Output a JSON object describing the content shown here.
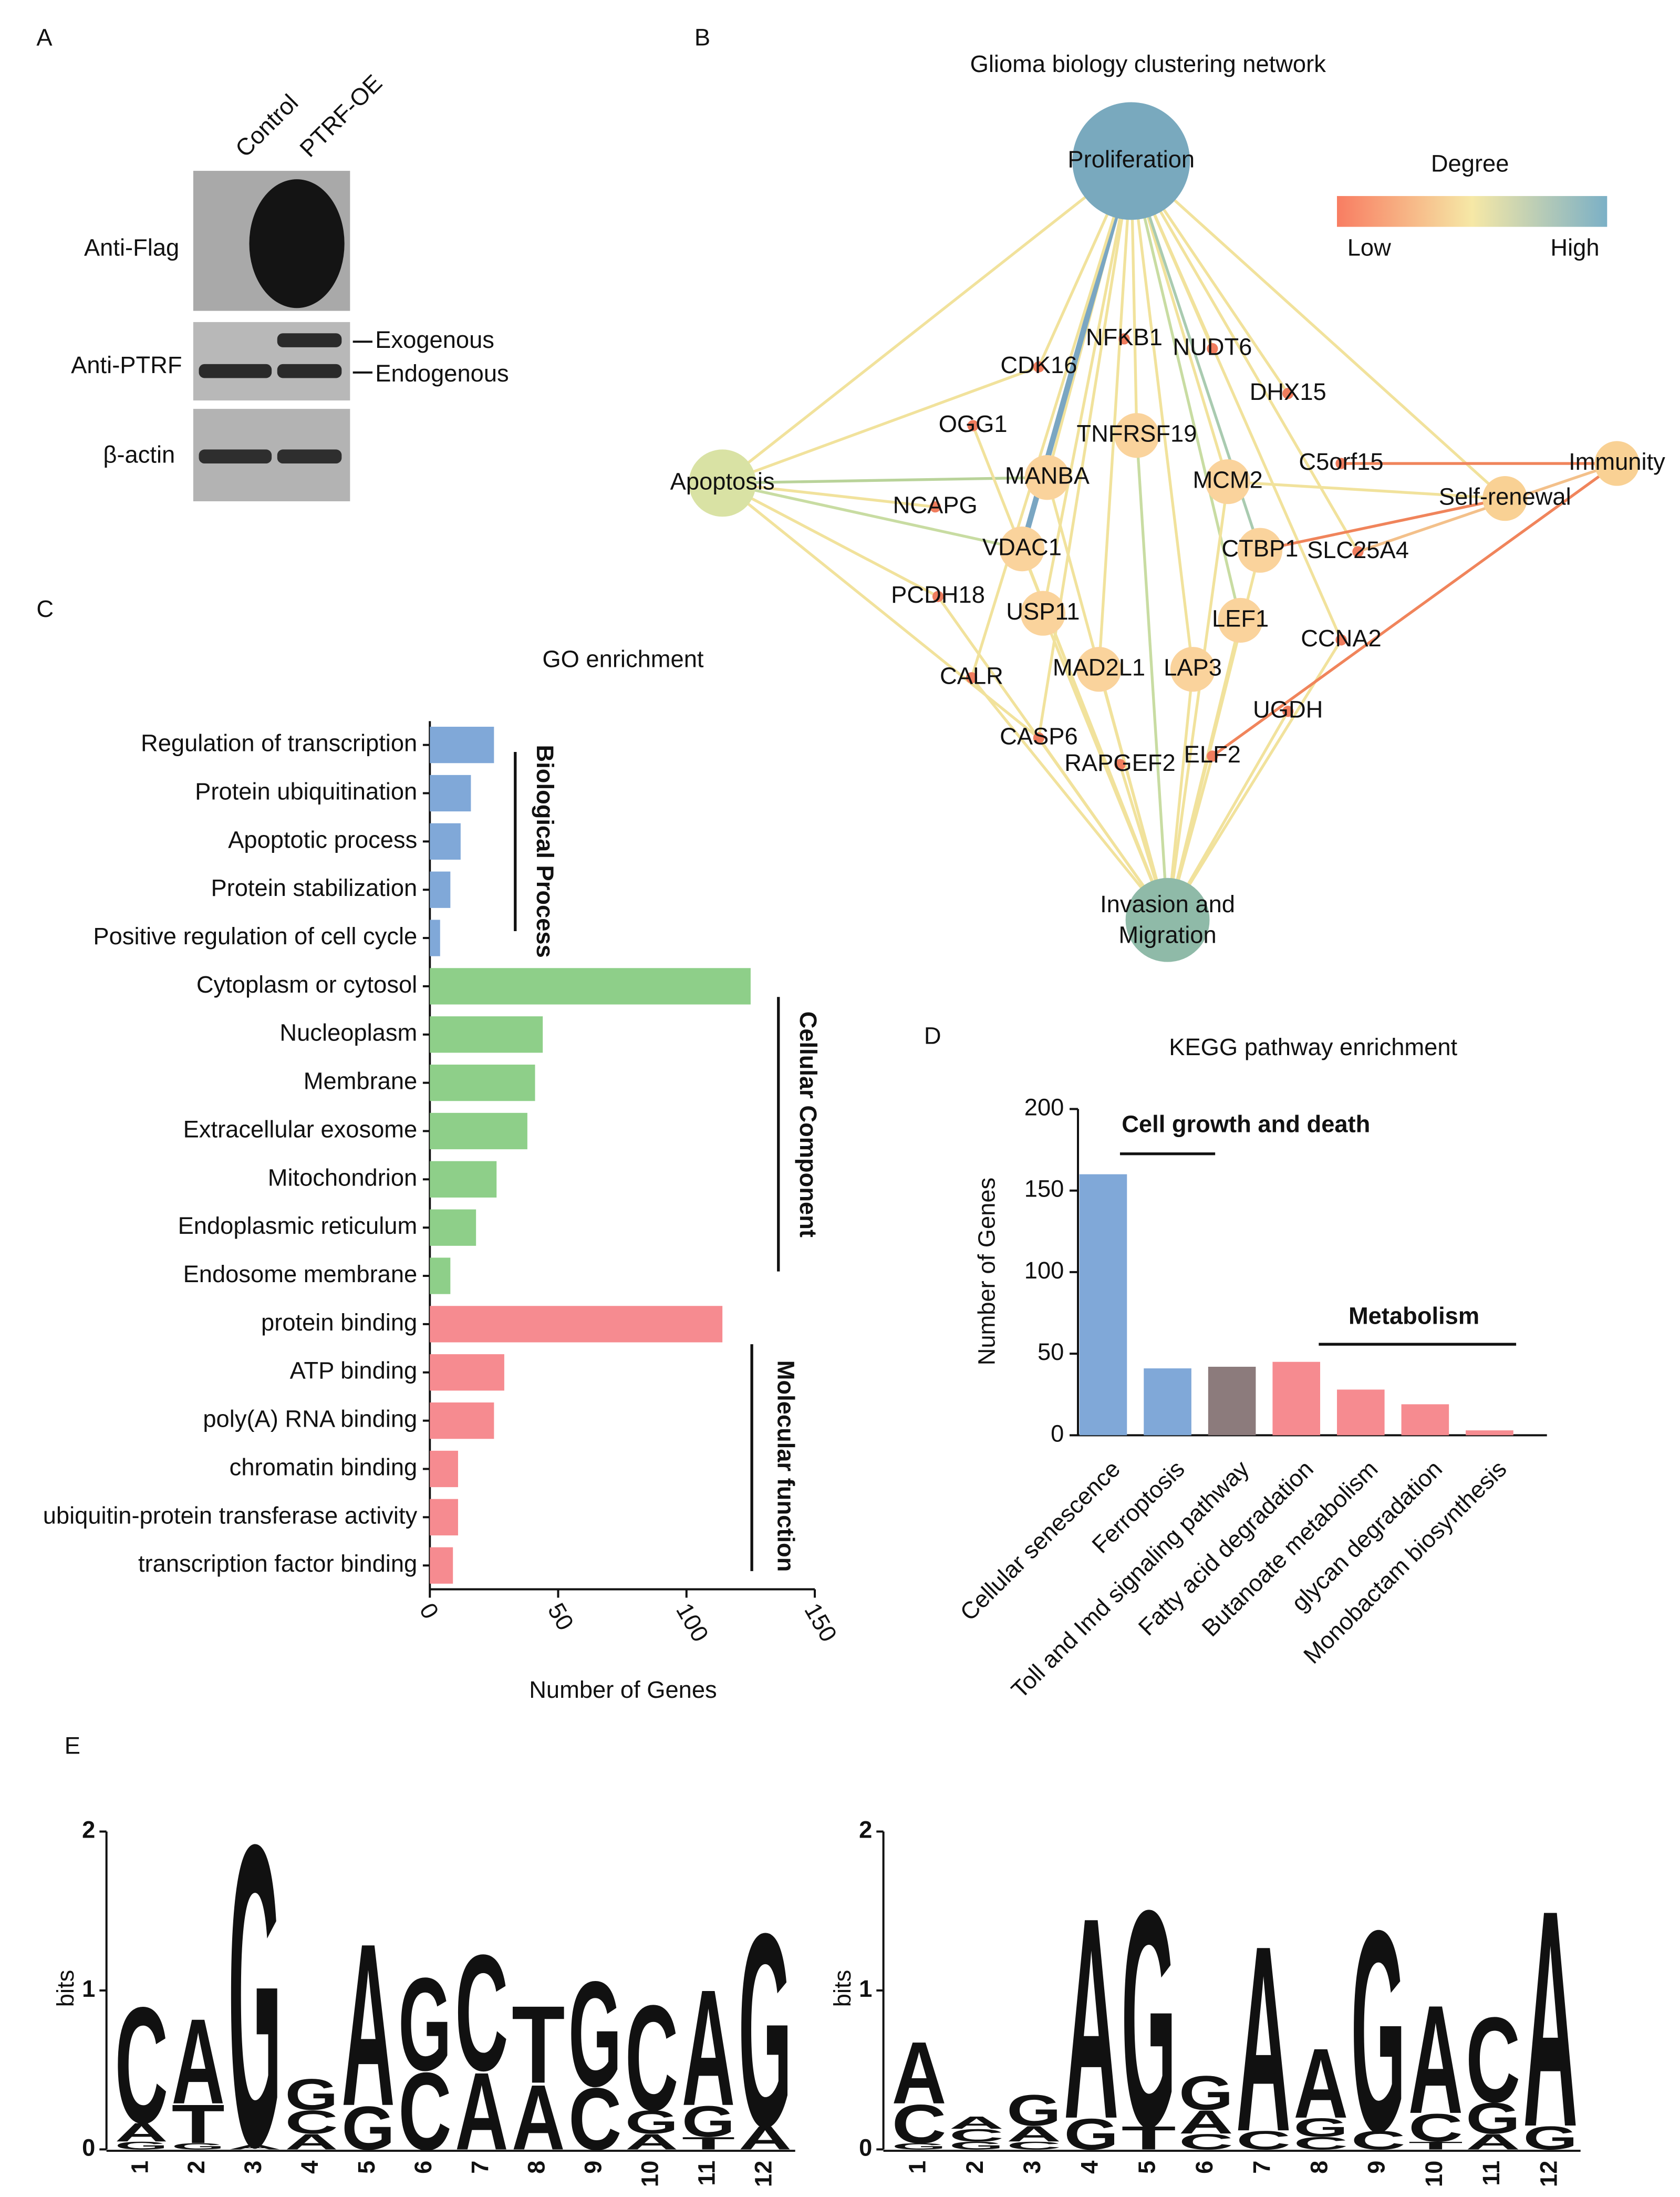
{
  "panels": [
    "A",
    "B",
    "C",
    "D",
    "E"
  ],
  "blot": {
    "columns": [
      "Control",
      "PTRF-OE"
    ],
    "rows": [
      "Anti-Flag",
      "Anti-PTRF",
      "β-actin"
    ],
    "annotations": [
      "Exogenous",
      "Endogenous"
    ]
  },
  "network": {
    "title": "Glioma biology clustering network",
    "legend": {
      "title": "Degree",
      "low": "Low",
      "high": "High",
      "colors": [
        "#f87d62",
        "#f6e8a6",
        "#7bb0c6"
      ]
    },
    "nodes": [
      {
        "label": "Proliferation",
        "color": "#79a9be"
      },
      {
        "label": "Apoptosis",
        "color": "#d9e2a4"
      },
      {
        "label": "Immunity",
        "color": "#f9d194"
      },
      {
        "label": "Self-renewal",
        "color": "#f9d194"
      },
      {
        "label": "Invasion and Migration",
        "color": "#8fbaa8"
      },
      {
        "label": "MANBA",
        "color": "#fad39c"
      },
      {
        "label": "TNFRSF19",
        "color": "#fad39c"
      },
      {
        "label": "MCM2",
        "color": "#fad39c"
      },
      {
        "label": "VDAC1",
        "color": "#fad39c"
      },
      {
        "label": "CTBP1",
        "color": "#fad39c"
      },
      {
        "label": "USP11",
        "color": "#fad39c"
      },
      {
        "label": "LEF1",
        "color": "#fad39c"
      },
      {
        "label": "MAD2L1",
        "color": "#fad39c"
      },
      {
        "label": "LAP3",
        "color": "#fad39c"
      },
      {
        "label": "CDK16",
        "color": "#f07d5e"
      },
      {
        "label": "NFKB1",
        "color": "#f07d5e"
      },
      {
        "label": "NUDT6",
        "color": "#f07d5e"
      },
      {
        "label": "DHX15",
        "color": "#f07d5e"
      },
      {
        "label": "OGG1",
        "color": "#f07d5e"
      },
      {
        "label": "NCAPG",
        "color": "#f07d5e"
      },
      {
        "label": "C5orf15",
        "color": "#f07d5e"
      },
      {
        "label": "SLC25A4",
        "color": "#f07d5e"
      },
      {
        "label": "PCDH18",
        "color": "#f07d5e"
      },
      {
        "label": "CCNA2",
        "color": "#f07d5e"
      },
      {
        "label": "CALR",
        "color": "#f07d5e"
      },
      {
        "label": "UGDH",
        "color": "#f07d5e"
      },
      {
        "label": "CASP6",
        "color": "#f07d5e"
      },
      {
        "label": "RAPGEF2",
        "color": "#f07d5e"
      },
      {
        "label": "ELF2",
        "color": "#f07d5e"
      }
    ],
    "edges": [
      {
        "source": 0,
        "target": 1,
        "color": "#f1e29c"
      },
      {
        "source": 0,
        "target": 5,
        "color": "#f1e29c"
      },
      {
        "source": 0,
        "target": 6,
        "color": "#f1e29c"
      },
      {
        "source": 0,
        "target": 7,
        "color": "#f1e29c"
      },
      {
        "source": 0,
        "target": 8,
        "color": "#7aa6c2"
      },
      {
        "source": 0,
        "target": 9,
        "color": "#a9cbb0"
      },
      {
        "source": 0,
        "target": 10,
        "color": "#f1e29c"
      },
      {
        "source": 0,
        "target": 11,
        "color": "#c8dca2"
      },
      {
        "source": 0,
        "target": 12,
        "color": "#f1e29c"
      },
      {
        "source": 0,
        "target": 13,
        "color": "#f1e29c"
      },
      {
        "source": 0,
        "target": 14,
        "color": "#f1e29c"
      },
      {
        "source": 0,
        "target": 16,
        "color": "#f1e29c"
      },
      {
        "source": 0,
        "target": 17,
        "color": "#f1e29c"
      },
      {
        "source": 0,
        "target": 21,
        "color": "#f1e29c"
      },
      {
        "source": 0,
        "target": 23,
        "color": "#f1e29c"
      },
      {
        "source": 0,
        "target": 24,
        "color": "#f1e29c"
      },
      {
        "source": 0,
        "target": 26,
        "color": "#f1e29c"
      },
      {
        "source": 0,
        "target": 3,
        "color": "#f1e29c"
      },
      {
        "source": 1,
        "target": 5,
        "color": "#b9d39a"
      },
      {
        "source": 1,
        "target": 8,
        "color": "#c8dca2"
      },
      {
        "source": 1,
        "target": 14,
        "color": "#f1e29c"
      },
      {
        "source": 1,
        "target": 19,
        "color": "#f1e29c"
      },
      {
        "source": 1,
        "target": 22,
        "color": "#f1e29c"
      },
      {
        "source": 1,
        "target": 26,
        "color": "#f1e29c"
      },
      {
        "source": 6,
        "target": 4,
        "color": "#c8dca2"
      },
      {
        "source": 4,
        "target": 5,
        "color": "#f1e29c"
      },
      {
        "source": 4,
        "target": 7,
        "color": "#f1e29c"
      },
      {
        "source": 4,
        "target": 8,
        "color": "#f1e29c"
      },
      {
        "source": 4,
        "target": 9,
        "color": "#f1e29c"
      },
      {
        "source": 4,
        "target": 10,
        "color": "#f1e29c"
      },
      {
        "source": 4,
        "target": 11,
        "color": "#f1e29c"
      },
      {
        "source": 4,
        "target": 12,
        "color": "#f1e29c"
      },
      {
        "source": 4,
        "target": 13,
        "color": "#f1e29c"
      },
      {
        "source": 4,
        "target": 22,
        "color": "#f1e29c"
      },
      {
        "source": 4,
        "target": 23,
        "color": "#f1e29c"
      },
      {
        "source": 4,
        "target": 24,
        "color": "#f1e29c"
      },
      {
        "source": 4,
        "target": 25,
        "color": "#f1e29c"
      },
      {
        "source": 4,
        "target": 26,
        "color": "#f1e29c"
      },
      {
        "source": 4,
        "target": 27,
        "color": "#f1e29c"
      },
      {
        "source": 4,
        "target": 28,
        "color": "#f1e29c"
      },
      {
        "source": 4,
        "target": 18,
        "color": "#f1e29c"
      },
      {
        "source": 20,
        "target": 2,
        "color": "#f0845b"
      },
      {
        "source": 28,
        "target": 2,
        "color": "#f0845b"
      },
      {
        "source": 9,
        "target": 3,
        "color": "#f0845b"
      },
      {
        "source": 7,
        "target": 3,
        "color": "#f1e29c"
      },
      {
        "source": 21,
        "target": 2,
        "color": "#f3c08a"
      }
    ]
  },
  "chart_data": [
    {
      "type": "bar",
      "orientation": "horizontal",
      "title": "GO enrichment",
      "xlabel": "Number of Genes",
      "categories": [
        "Regulation of transcription",
        "Protein ubiquitination",
        "Apoptotic process",
        "Protein stabilization",
        "Positive regulation of cell cycle",
        "Cytoplasm or cytosol",
        "Nucleoplasm",
        "Membrane",
        "Extracellular exosome",
        "Mitochondrion",
        "Endoplasmic reticulum",
        "Endosome membrane",
        "protein binding",
        "ATP binding",
        "poly(A) RNA binding",
        "chromatin binding",
        "ubiquitin-protein transferase activity",
        "transcription factor binding"
      ],
      "values": [
        25,
        16,
        12,
        8,
        4,
        125,
        44,
        41,
        38,
        26,
        18,
        8,
        114,
        29,
        25,
        11,
        11,
        9
      ],
      "colors": [
        "#80a8d8",
        "#80a8d8",
        "#80a8d8",
        "#80a8d8",
        "#80a8d8",
        "#8ecf89",
        "#8ecf89",
        "#8ecf89",
        "#8ecf89",
        "#8ecf89",
        "#8ecf89",
        "#8ecf89",
        "#f68b90",
        "#f68b90",
        "#f68b90",
        "#f68b90",
        "#f68b90",
        "#f68b90"
      ],
      "xlim": [
        0,
        150
      ],
      "xticks": [
        0,
        50,
        100,
        150
      ],
      "groups": [
        {
          "label": "Biological Process",
          "color": "#80a8d8"
        },
        {
          "label": "Cellular Component",
          "color": "#8ecf89"
        },
        {
          "label": "Molecular function",
          "color": "#f68b90"
        }
      ]
    },
    {
      "type": "bar",
      "title": "KEGG pathway enrichment",
      "ylabel": "Number of Genes",
      "categories": [
        "Cellular senescence",
        "Ferroptosis",
        "Toll and Imd signaling pathway",
        "Fatty acid degradation",
        "Butanoate metabolism",
        "glycan degradation",
        "Monobactam biosynthesis"
      ],
      "values": [
        160,
        41,
        42,
        45,
        28,
        19,
        3
      ],
      "colors": [
        "#80a8d8",
        "#80a8d8",
        "#8c7b7c",
        "#f68b90",
        "#f68b90",
        "#f68b90",
        "#f68b90"
      ],
      "ylim": [
        0,
        200
      ],
      "yticks": [
        0,
        50,
        100,
        150,
        200
      ],
      "annotations": [
        {
          "text": "Cell growth and death",
          "color": "#80a8d8"
        },
        {
          "text": "Metabolism",
          "color": "#f68b90"
        }
      ]
    },
    {
      "type": "logo",
      "ylabel": "bits",
      "ylim": [
        0,
        2
      ],
      "yticks": [
        0,
        1,
        2
      ],
      "positions": [
        "1",
        "2",
        "3",
        "4",
        "5",
        "6",
        "7",
        "8",
        "9",
        "10",
        "11",
        "12"
      ],
      "colors": {
        "A": "#d42a2a",
        "C": "#2d2d8c",
        "G": "#f5a623",
        "T": "#1a7b30"
      },
      "stacks": [
        [
          {
            "letter": "G",
            "height": 0.05
          },
          {
            "letter": "A",
            "height": 0.12
          },
          {
            "letter": "C",
            "height": 0.75
          }
        ],
        [
          {
            "letter": "G",
            "height": 0.04
          },
          {
            "letter": "T",
            "height": 0.25
          },
          {
            "letter": "A",
            "height": 0.55
          }
        ],
        [
          {
            "letter": "A",
            "height": 0.03
          },
          {
            "letter": "G",
            "height": 1.95
          }
        ],
        [
          {
            "letter": "A",
            "height": 0.1
          },
          {
            "letter": "C",
            "height": 0.15
          },
          {
            "letter": "G",
            "height": 0.2
          }
        ],
        [
          {
            "letter": "G",
            "height": 0.28
          },
          {
            "letter": "A",
            "height": 1.05
          }
        ],
        [
          {
            "letter": "C",
            "height": 0.5
          },
          {
            "letter": "G",
            "height": 0.6
          }
        ],
        [
          {
            "letter": "A",
            "height": 0.5
          },
          {
            "letter": "C",
            "height": 0.75
          }
        ],
        [
          {
            "letter": "A",
            "height": 0.42
          },
          {
            "letter": "T",
            "height": 0.5
          }
        ],
        [
          {
            "letter": "C",
            "height": 0.4
          },
          {
            "letter": "G",
            "height": 0.68
          }
        ],
        [
          {
            "letter": "A",
            "height": 0.1
          },
          {
            "letter": "G",
            "height": 0.15
          },
          {
            "letter": "C",
            "height": 0.68
          }
        ],
        [
          {
            "letter": "T",
            "height": 0.08
          },
          {
            "letter": "G",
            "height": 0.2
          },
          {
            "letter": "A",
            "height": 0.75
          }
        ],
        [
          {
            "letter": "A",
            "height": 0.15
          },
          {
            "letter": "G",
            "height": 1.25
          }
        ]
      ]
    },
    {
      "type": "logo",
      "ylabel": "bits",
      "ylim": [
        0,
        2
      ],
      "yticks": [
        0,
        1,
        2
      ],
      "positions": [
        "1",
        "2",
        "3",
        "4",
        "5",
        "6",
        "7",
        "8",
        "9",
        "10",
        "11",
        "12"
      ],
      "colors": {
        "A": "#d42a2a",
        "C": "#2d2d8c",
        "G": "#f5a623",
        "T": "#1a7b30"
      },
      "stacks": [
        [
          {
            "letter": "G",
            "height": 0.04
          },
          {
            "letter": "C",
            "height": 0.25
          },
          {
            "letter": "A",
            "height": 0.4
          }
        ],
        [
          {
            "letter": "G",
            "height": 0.05
          },
          {
            "letter": "C",
            "height": 0.08
          },
          {
            "letter": "A",
            "height": 0.08
          }
        ],
        [
          {
            "letter": "C",
            "height": 0.05
          },
          {
            "letter": "A",
            "height": 0.1
          },
          {
            "letter": "G",
            "height": 0.2
          }
        ],
        [
          {
            "letter": "G",
            "height": 0.2
          },
          {
            "letter": "A",
            "height": 1.3
          }
        ],
        [
          {
            "letter": "T",
            "height": 0.15
          },
          {
            "letter": "G",
            "height": 1.4
          }
        ],
        [
          {
            "letter": "C",
            "height": 0.1
          },
          {
            "letter": "A",
            "height": 0.15
          },
          {
            "letter": "G",
            "height": 0.22
          }
        ],
        [
          {
            "letter": "C",
            "height": 0.12
          },
          {
            "letter": "A",
            "height": 1.2
          }
        ],
        [
          {
            "letter": "C",
            "height": 0.08
          },
          {
            "letter": "G",
            "height": 0.12
          },
          {
            "letter": "A",
            "height": 0.45
          }
        ],
        [
          {
            "letter": "C",
            "height": 0.12
          },
          {
            "letter": "G",
            "height": 1.3
          }
        ],
        [
          {
            "letter": "T",
            "height": 0.05
          },
          {
            "letter": "C",
            "height": 0.18
          },
          {
            "letter": "A",
            "height": 0.7
          }
        ],
        [
          {
            "letter": "A",
            "height": 0.1
          },
          {
            "letter": "G",
            "height": 0.2
          },
          {
            "letter": "C",
            "height": 0.55
          }
        ],
        [
          {
            "letter": "G",
            "height": 0.15
          },
          {
            "letter": "A",
            "height": 1.4
          }
        ]
      ]
    }
  ]
}
